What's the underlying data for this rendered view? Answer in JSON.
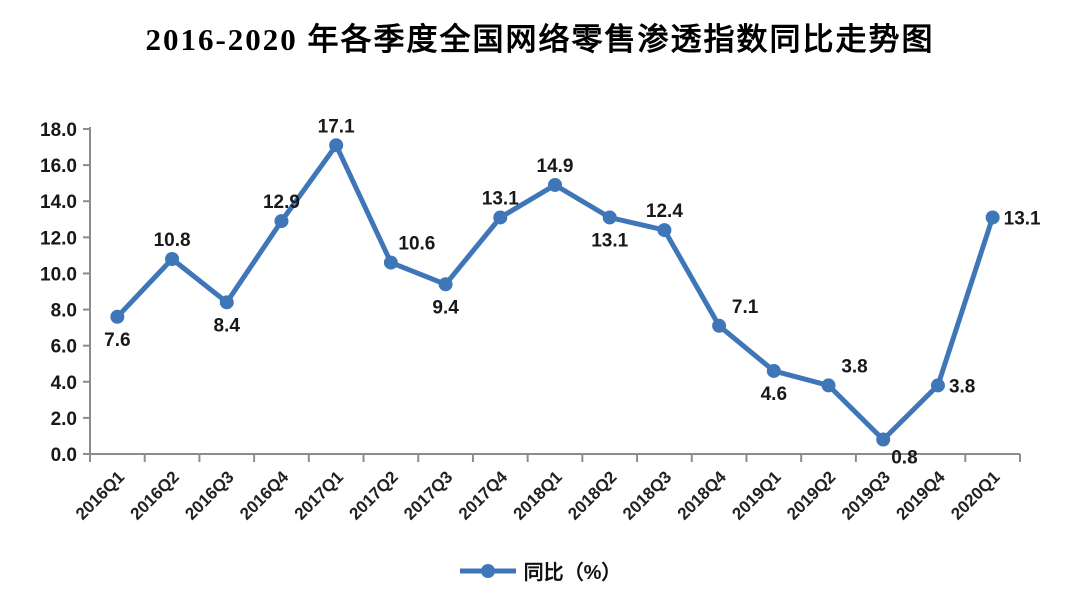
{
  "title": "2016-2020 年各季度全国网络零售渗透指数同比走势图",
  "legend": {
    "label": "同比（%）"
  },
  "colors": {
    "line": "#3F76B8",
    "axis": "#8C8C8C",
    "data_label": "#181818",
    "tick_label": "#17171c"
  },
  "chart_data": {
    "type": "line",
    "title": "2016-2020 年各季度全国网络零售渗透指数同比走势图",
    "categories": [
      "2016Q1",
      "2016Q2",
      "2016Q3",
      "2016Q4",
      "2017Q1",
      "2017Q2",
      "2017Q3",
      "2017Q4",
      "2018Q1",
      "2018Q2",
      "2018Q3",
      "2018Q4",
      "2019Q1",
      "2019Q2",
      "2019Q3",
      "2019Q4",
      "2020Q1"
    ],
    "series": [
      {
        "name": "同比（%）",
        "values": [
          7.6,
          10.8,
          8.4,
          12.9,
          17.1,
          10.6,
          9.4,
          13.1,
          14.9,
          13.1,
          12.4,
          7.1,
          4.6,
          3.8,
          0.8,
          3.8,
          13.1
        ]
      }
    ],
    "data_labels": [
      "7.6",
      "10.8",
      "8.4",
      "12.9",
      "17.1",
      "10.6",
      "9.4",
      "13.1",
      "14.9",
      "13.1",
      "12.4",
      "7.1",
      "4.6",
      "3.8",
      "0.8",
      "3.8",
      "13.1"
    ],
    "label_placements": [
      "below",
      "above",
      "below",
      "above",
      "above",
      "above-right",
      "below",
      "above",
      "above",
      "below",
      "above",
      "above-right",
      "below",
      "above-right",
      "below-right",
      "right",
      "right"
    ],
    "xlabel": "",
    "ylabel": "",
    "ylim": [
      0,
      18
    ],
    "ytick_step": 2,
    "ytick_labels": [
      "0.0",
      "2.0",
      "4.0",
      "6.0",
      "8.0",
      "10.0",
      "12.0",
      "14.0",
      "16.0",
      "18.0"
    ],
    "grid": false,
    "marker": "circle",
    "legend_position": "bottom-center"
  }
}
